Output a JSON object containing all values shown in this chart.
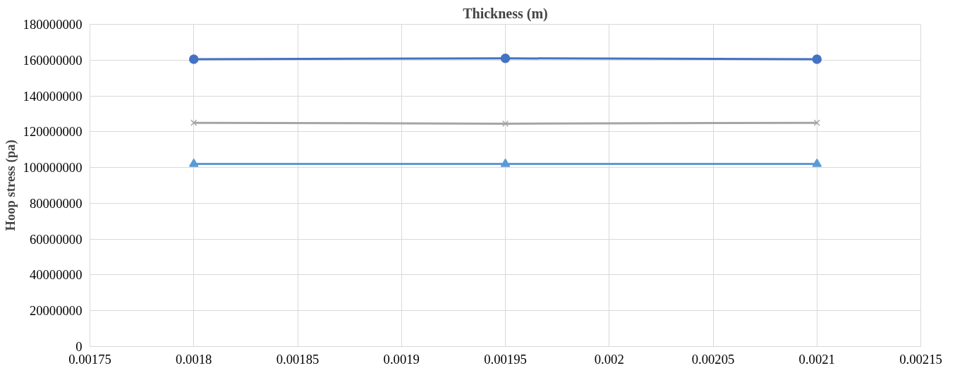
{
  "chart_data": {
    "type": "line",
    "title": "Thickness (m)",
    "ylabel": "Hoop stress (pa)",
    "x": [
      0.0018,
      0.00195,
      0.0021
    ],
    "series": [
      {
        "color": "#4472c4",
        "marker": "circle",
        "values": [
          160500000,
          161000000,
          160500000
        ]
      },
      {
        "color": "#a5a5a5",
        "marker": "cross",
        "values": [
          125000000,
          124500000,
          125000000
        ]
      },
      {
        "color": "#5b9bd5",
        "marker": "triangle",
        "values": [
          102000000,
          102000000,
          102000000
        ]
      }
    ],
    "xlim": [
      0.00175,
      0.00215
    ],
    "xticks": [
      0.00175,
      0.0018,
      0.00185,
      0.0019,
      0.00195,
      0.002,
      0.00205,
      0.0021,
      0.00215
    ],
    "ylim": [
      0,
      180000000
    ],
    "yticks": [
      0,
      20000000,
      40000000,
      60000000,
      80000000,
      100000000,
      120000000,
      140000000,
      160000000,
      180000000
    ],
    "grid": true,
    "line_style": "solid"
  }
}
